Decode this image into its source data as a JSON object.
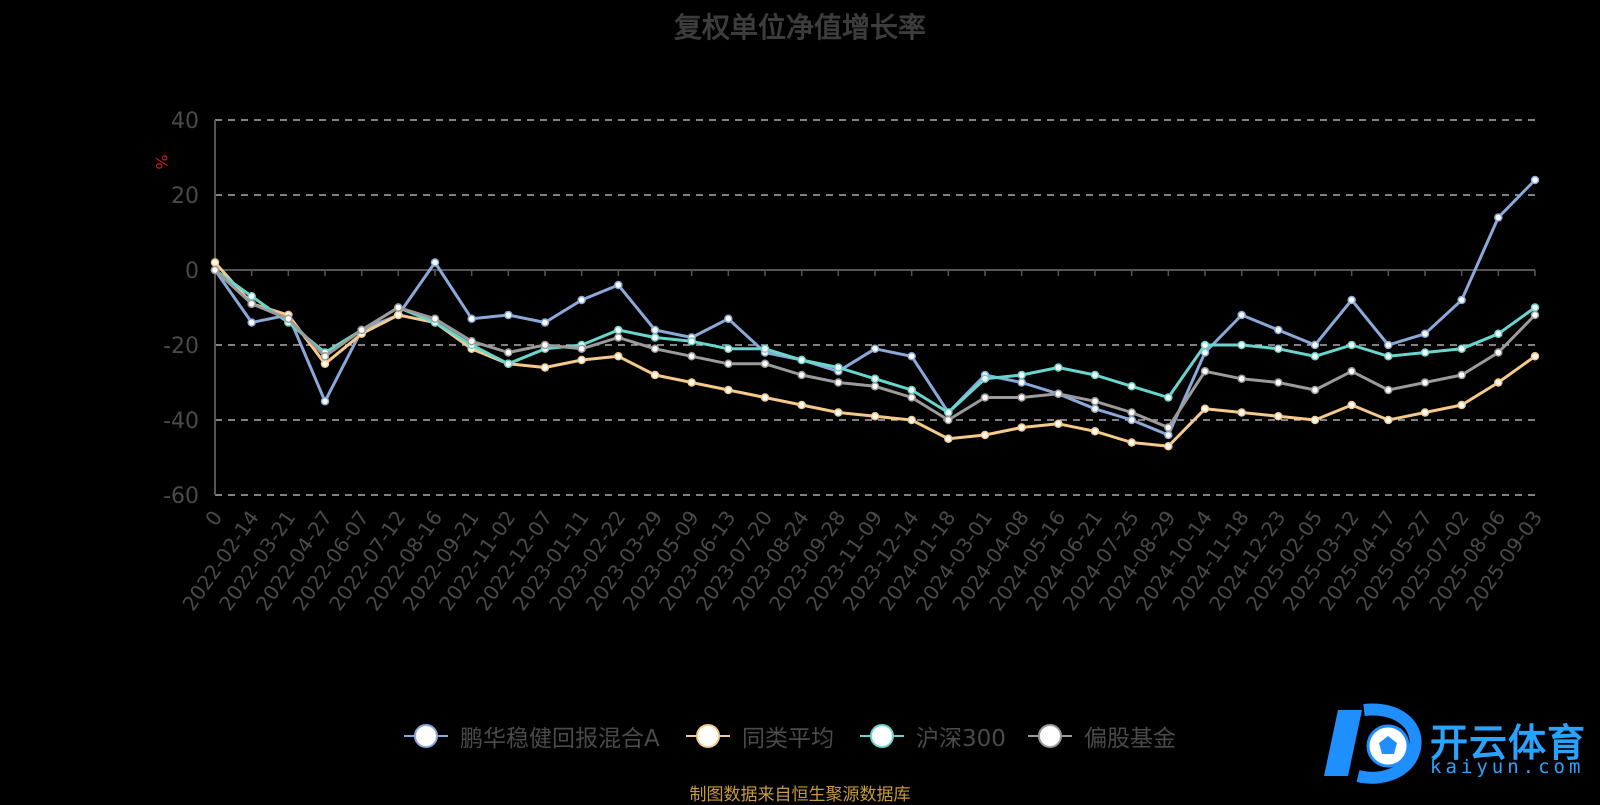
{
  "chart_data": {
    "type": "line",
    "title": "复权单位净值增长率",
    "ylabel": "%",
    "ylim": [
      -60,
      40
    ],
    "yticks": [
      40,
      20,
      0,
      -20,
      -40,
      -60
    ],
    "grid": "horizontal-dashed",
    "legend_position": "bottom-center",
    "x_tick_labels": [
      "0",
      "2022-02-14",
      "2022-03-21",
      "2022-04-27",
      "2022-06-07",
      "2022-07-12",
      "2022-08-16",
      "2022-09-21",
      "2022-11-02",
      "2022-12-07",
      "2023-01-11",
      "2023-02-22",
      "2023-03-29",
      "2023-05-09",
      "2023-06-13",
      "2023-07-20",
      "2023-08-24",
      "2023-09-28",
      "2023-11-09",
      "2023-12-14",
      "2024-01-18",
      "2024-03-01",
      "2024-04-08",
      "2024-05-16",
      "2024-06-21",
      "2024-07-25",
      "2024-08-29",
      "2024-10-14",
      "2024-11-18",
      "2024-12-23",
      "2025-02-05",
      "2025-03-12",
      "2025-04-17",
      "2025-05-27",
      "2025-07-02",
      "2025-08-06",
      "2025-09-03"
    ],
    "series": [
      {
        "name": "鹏华稳健回报混合A",
        "color": "#8aa8d8",
        "values": [
          0,
          -14,
          -12,
          -35,
          -16,
          -12,
          2,
          -13,
          -12,
          -14,
          -8,
          -4,
          -16,
          -18,
          -13,
          -22,
          -24,
          -27,
          -21,
          -23,
          -38,
          -28,
          -30,
          -33,
          -37,
          -40,
          -44,
          -22,
          -12,
          -16,
          -20,
          -8,
          -20,
          -17,
          -8,
          14,
          24
        ]
      },
      {
        "name": "同类平均",
        "color": "#f4c98a",
        "values": [
          2,
          -9,
          -12,
          -25,
          -17,
          -12,
          -14,
          -21,
          -25,
          -26,
          -24,
          -23,
          -28,
          -30,
          -32,
          -34,
          -36,
          -38,
          -39,
          -40,
          -45,
          -44,
          -42,
          -41,
          -43,
          -46,
          -47,
          -37,
          -38,
          -39,
          -40,
          -36,
          -40,
          -38,
          -36,
          -30,
          -23
        ]
      },
      {
        "name": "沪深300",
        "color": "#68d6cc",
        "values": [
          0,
          -7,
          -14,
          -22,
          -16,
          -10,
          -14,
          -20,
          -25,
          -21,
          -20,
          -16,
          -18,
          -19,
          -21,
          -21,
          -24,
          -26,
          -29,
          -32,
          -38,
          -29,
          -28,
          -26,
          -28,
          -31,
          -34,
          -20,
          -20,
          -21,
          -23,
          -20,
          -23,
          -22,
          -21,
          -17,
          -10
        ]
      },
      {
        "name": "偏股基金",
        "color": "#9b9b9b",
        "values": [
          0,
          -9,
          -13,
          -23,
          -16,
          -10,
          -13,
          -19,
          -22,
          -20,
          -21,
          -18,
          -21,
          -23,
          -25,
          -25,
          -28,
          -30,
          -31,
          -34,
          -40,
          -34,
          -34,
          -33,
          -35,
          -38,
          -42,
          -27,
          -29,
          -30,
          -32,
          -27,
          -32,
          -30,
          -28,
          -22,
          -12
        ]
      }
    ]
  },
  "source_note": "制图数据来自恒生聚源数据库",
  "watermark": {
    "main": "开云体育",
    "sub": "kaiyun.com"
  }
}
